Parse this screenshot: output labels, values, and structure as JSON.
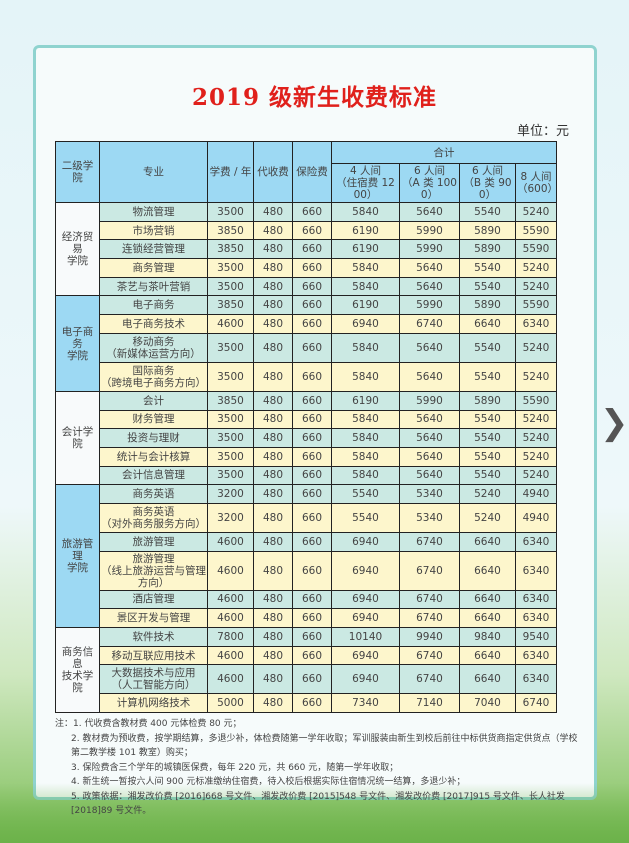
{
  "title": "2019 级新生收费标准",
  "unit": "单位：元",
  "headers": {
    "college": "二级学院",
    "major": "专业",
    "tuition": "学费 / 年",
    "collect": "代收费",
    "insurance": "保险费",
    "total": "合计",
    "r4": "4 人间\n（住宿费 1200）",
    "r6a": "6 人间\n（A 类 1000）",
    "r6b": "6 人间\n（B 类 900）",
    "r8": "8 人间\n（600）"
  },
  "colleges": [
    {
      "name": "经济贸易\n学院",
      "rows": [
        [
          "物流管理",
          "3500",
          "480",
          "660",
          "5840",
          "5640",
          "5540",
          "5240"
        ],
        [
          "市场营销",
          "3850",
          "480",
          "660",
          "6190",
          "5990",
          "5890",
          "5590"
        ],
        [
          "连锁经营管理",
          "3850",
          "480",
          "660",
          "6190",
          "5990",
          "5890",
          "5590"
        ],
        [
          "商务管理",
          "3500",
          "480",
          "660",
          "5840",
          "5640",
          "5540",
          "5240"
        ],
        [
          "茶艺与茶叶营销",
          "3500",
          "480",
          "660",
          "5840",
          "5640",
          "5540",
          "5240"
        ]
      ]
    },
    {
      "name": "电子商务\n学院",
      "rows": [
        [
          "电子商务",
          "3850",
          "480",
          "660",
          "6190",
          "5990",
          "5890",
          "5590"
        ],
        [
          "电子商务技术",
          "4600",
          "480",
          "660",
          "6940",
          "6740",
          "6640",
          "6340"
        ],
        [
          "移动商务\n（新媒体运营方向）",
          "3500",
          "480",
          "660",
          "5840",
          "5640",
          "5540",
          "5240"
        ],
        [
          "国际商务\n（跨境电子商务方向）",
          "3500",
          "480",
          "660",
          "5840",
          "5640",
          "5540",
          "5240"
        ]
      ]
    },
    {
      "name": "会计学院",
      "rows": [
        [
          "会计",
          "3850",
          "480",
          "660",
          "6190",
          "5990",
          "5890",
          "5590"
        ],
        [
          "财务管理",
          "3500",
          "480",
          "660",
          "5840",
          "5640",
          "5540",
          "5240"
        ],
        [
          "投资与理财",
          "3500",
          "480",
          "660",
          "5840",
          "5640",
          "5540",
          "5240"
        ],
        [
          "统计与会计核算",
          "3500",
          "480",
          "660",
          "5840",
          "5640",
          "5540",
          "5240"
        ],
        [
          "会计信息管理",
          "3500",
          "480",
          "660",
          "5840",
          "5640",
          "5540",
          "5240"
        ]
      ]
    },
    {
      "name": "旅游管理\n学院",
      "rows": [
        [
          "商务英语",
          "3200",
          "480",
          "660",
          "5540",
          "5340",
          "5240",
          "4940"
        ],
        [
          "商务英语\n（对外商务服务方向）",
          "3200",
          "480",
          "660",
          "5540",
          "5340",
          "5240",
          "4940"
        ],
        [
          "旅游管理",
          "4600",
          "480",
          "660",
          "6940",
          "6740",
          "6640",
          "6340"
        ],
        [
          "旅游管理\n（线上旅游运营与管理方向）",
          "4600",
          "480",
          "660",
          "6940",
          "6740",
          "6640",
          "6340"
        ],
        [
          "酒店管理",
          "4600",
          "480",
          "660",
          "6940",
          "6740",
          "6640",
          "6340"
        ],
        [
          "景区开发与管理",
          "4600",
          "480",
          "660",
          "6940",
          "6740",
          "6640",
          "6340"
        ]
      ]
    },
    {
      "name": "商务信息\n技术学院",
      "rows": [
        [
          "软件技术",
          "7800",
          "480",
          "660",
          "10140",
          "9940",
          "9840",
          "9540"
        ],
        [
          "移动互联应用技术",
          "4600",
          "480",
          "660",
          "6940",
          "6740",
          "6640",
          "6340"
        ],
        [
          "大数据技术与应用\n（人工智能方向）",
          "4600",
          "480",
          "660",
          "6940",
          "6740",
          "6640",
          "6340"
        ],
        [
          "计算机网络技术",
          "5000",
          "480",
          "660",
          "7340",
          "7140",
          "7040",
          "6740"
        ]
      ]
    }
  ],
  "notes": [
    "注：1. 代收费含教材费 400 元体检费 80 元；",
    "2. 教材费为预收费，按学期结算，多退少补，体检费随第一学年收取；军训服装由新生到校后前往中标供货商指定供货点（学校第二教学楼 101 教室）购买；",
    "3. 保险费含三个学年的城镇医保费，每年 220 元，共 660 元，随第一学年收取；",
    "4. 新生统一暂按六人间 900 元标准缴纳住宿费，待入校后根据实际住宿情况统一结算，多退少补；",
    "5. 政策依据：湘发改价费 [2016]668 号文件、湘发改价费 [2015]548 号文件、湘发改价费 [2017]915 号文件、长人社发 [2018]89 号文件。"
  ],
  "nav": {
    "next_icon": "chevron-right-icon"
  }
}
